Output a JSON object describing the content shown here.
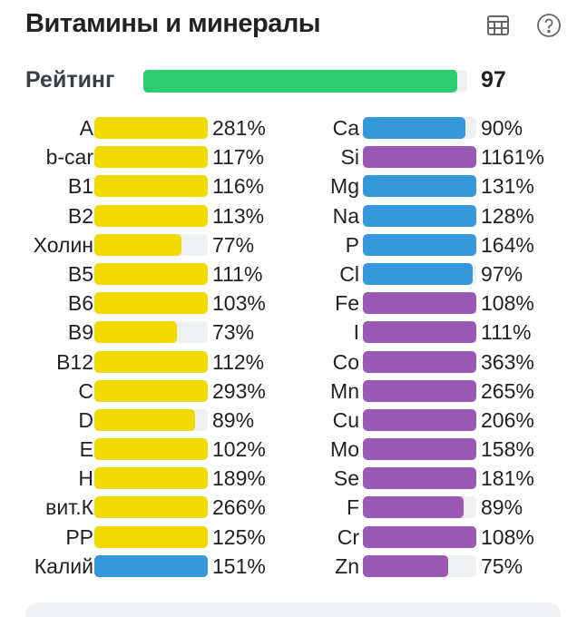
{
  "header": {
    "title": "Витамины и минералы",
    "icons": [
      "table-icon",
      "help-icon"
    ]
  },
  "rating": {
    "label": "Рейтинг",
    "value": "97",
    "percent": 97,
    "color": "#2ecc71"
  },
  "colors": {
    "vitamin": "#f2d900",
    "mineral_blue": "#3598db",
    "mineral_purple": "#9b59b6",
    "track": "#eef0f2"
  },
  "left": [
    {
      "label": "A",
      "value": "281%",
      "pct": 281,
      "color": "#f2d900"
    },
    {
      "label": "b-car",
      "value": "117%",
      "pct": 117,
      "color": "#f2d900"
    },
    {
      "label": "B1",
      "value": "116%",
      "pct": 116,
      "color": "#f2d900"
    },
    {
      "label": "B2",
      "value": "113%",
      "pct": 113,
      "color": "#f2d900"
    },
    {
      "label": "Холин",
      "value": "77%",
      "pct": 77,
      "color": "#f2d900"
    },
    {
      "label": "B5",
      "value": "111%",
      "pct": 111,
      "color": "#f2d900"
    },
    {
      "label": "B6",
      "value": "103%",
      "pct": 103,
      "color": "#f2d900"
    },
    {
      "label": "B9",
      "value": "73%",
      "pct": 73,
      "color": "#f2d900"
    },
    {
      "label": "B12",
      "value": "112%",
      "pct": 112,
      "color": "#f2d900"
    },
    {
      "label": "C",
      "value": "293%",
      "pct": 293,
      "color": "#f2d900"
    },
    {
      "label": "D",
      "value": "89%",
      "pct": 89,
      "color": "#f2d900"
    },
    {
      "label": "E",
      "value": "102%",
      "pct": 102,
      "color": "#f2d900"
    },
    {
      "label": "H",
      "value": "189%",
      "pct": 189,
      "color": "#f2d900"
    },
    {
      "label": "вит.К",
      "value": "266%",
      "pct": 266,
      "color": "#f2d900"
    },
    {
      "label": "PP",
      "value": "125%",
      "pct": 125,
      "color": "#f2d900"
    },
    {
      "label": "Калий",
      "value": "151%",
      "pct": 151,
      "color": "#3598db"
    }
  ],
  "right": [
    {
      "label": "Ca",
      "value": "90%",
      "pct": 90,
      "color": "#3598db"
    },
    {
      "label": "Si",
      "value": "1161%",
      "pct": 1161,
      "color": "#9b59b6"
    },
    {
      "label": "Mg",
      "value": "131%",
      "pct": 131,
      "color": "#3598db"
    },
    {
      "label": "Na",
      "value": "128%",
      "pct": 128,
      "color": "#3598db"
    },
    {
      "label": "P",
      "value": "164%",
      "pct": 164,
      "color": "#3598db"
    },
    {
      "label": "Cl",
      "value": "97%",
      "pct": 97,
      "color": "#3598db"
    },
    {
      "label": "Fe",
      "value": "108%",
      "pct": 108,
      "color": "#9b59b6"
    },
    {
      "label": "I",
      "value": "111%",
      "pct": 111,
      "color": "#9b59b6"
    },
    {
      "label": "Co",
      "value": "363%",
      "pct": 363,
      "color": "#9b59b6"
    },
    {
      "label": "Mn",
      "value": "265%",
      "pct": 265,
      "color": "#9b59b6"
    },
    {
      "label": "Cu",
      "value": "206%",
      "pct": 206,
      "color": "#9b59b6"
    },
    {
      "label": "Mo",
      "value": "158%",
      "pct": 158,
      "color": "#9b59b6"
    },
    {
      "label": "Se",
      "value": "181%",
      "pct": 181,
      "color": "#9b59b6"
    },
    {
      "label": "F",
      "value": "89%",
      "pct": 89,
      "color": "#9b59b6"
    },
    {
      "label": "Cr",
      "value": "108%",
      "pct": 108,
      "color": "#9b59b6"
    },
    {
      "label": "Zn",
      "value": "75%",
      "pct": 75,
      "color": "#9b59b6"
    }
  ]
}
